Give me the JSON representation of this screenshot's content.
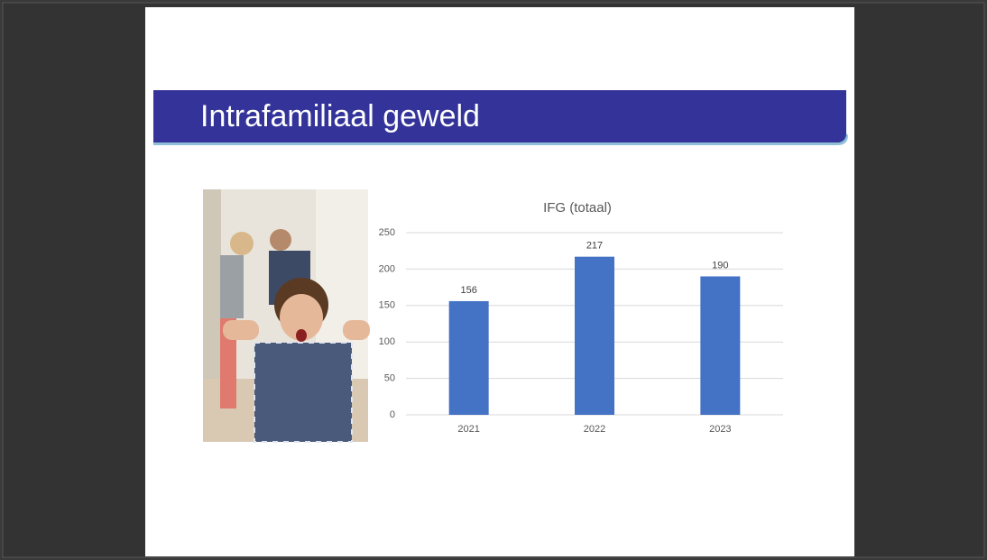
{
  "slide": {
    "title": "Intrafamiliaal geweld"
  },
  "chart_data": {
    "type": "bar",
    "title": "IFG (totaal)",
    "categories": [
      "2021",
      "2022",
      "2023"
    ],
    "values": [
      156,
      217,
      190
    ],
    "color": "#4472c4",
    "ylim": [
      0,
      250
    ],
    "yticks": [
      0,
      50,
      100,
      150,
      200,
      250
    ],
    "grid": true,
    "data_labels": true
  }
}
